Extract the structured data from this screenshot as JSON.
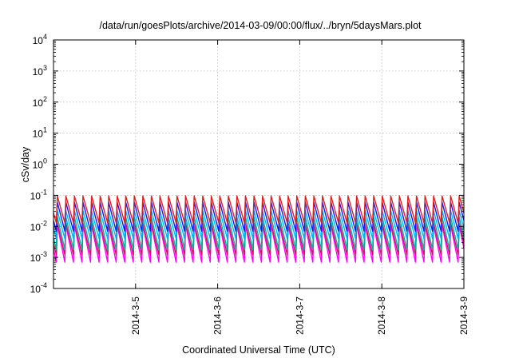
{
  "chart_data": {
    "type": "line",
    "title": "/data/run/goesPlots/archive/2014-03-09/00:00/flux/../bryn/5daysMars.plot",
    "xlabel": "Coordinated Universal Time (UTC)",
    "ylabel": "cSv/day",
    "y_scale": "log",
    "ylim": [
      0.0001,
      10000
    ],
    "y_ticks": [
      {
        "base": "10",
        "exp": "-4"
      },
      {
        "base": "10",
        "exp": "-3"
      },
      {
        "base": "10",
        "exp": "-2"
      },
      {
        "base": "10",
        "exp": "-1"
      },
      {
        "base": "10",
        "exp": "0"
      },
      {
        "base": "10",
        "exp": "1"
      },
      {
        "base": "10",
        "exp": "2"
      },
      {
        "base": "10",
        "exp": "3"
      },
      {
        "base": "10",
        "exp": "4"
      }
    ],
    "xlim": [
      "2014-03-04T00:00",
      "2014-03-09T00:00"
    ],
    "x_ticks": [
      "2014-3-5",
      "2014-3-6",
      "2014-3-7",
      "2014-3-8",
      "2014-3-9"
    ],
    "grid": true,
    "legend": "none",
    "sawtooth_period_hours": 2.5,
    "series": [
      {
        "color": "#ff00ff",
        "peak": 0.011,
        "trough": 0.0007
      },
      {
        "color": "#d4145a",
        "peak": 0.013,
        "trough": 0.0012
      },
      {
        "color": "#00b0a0",
        "peak": 0.02,
        "trough": 0.0018
      },
      {
        "color": "#00b4ff",
        "peak": 0.032,
        "trough": 0.004
      },
      {
        "color": "#1a1ae6",
        "peak": 0.06,
        "trough": 0.007
      },
      {
        "color": "#e02020",
        "peak": 0.095,
        "trough": 0.013
      }
    ]
  }
}
